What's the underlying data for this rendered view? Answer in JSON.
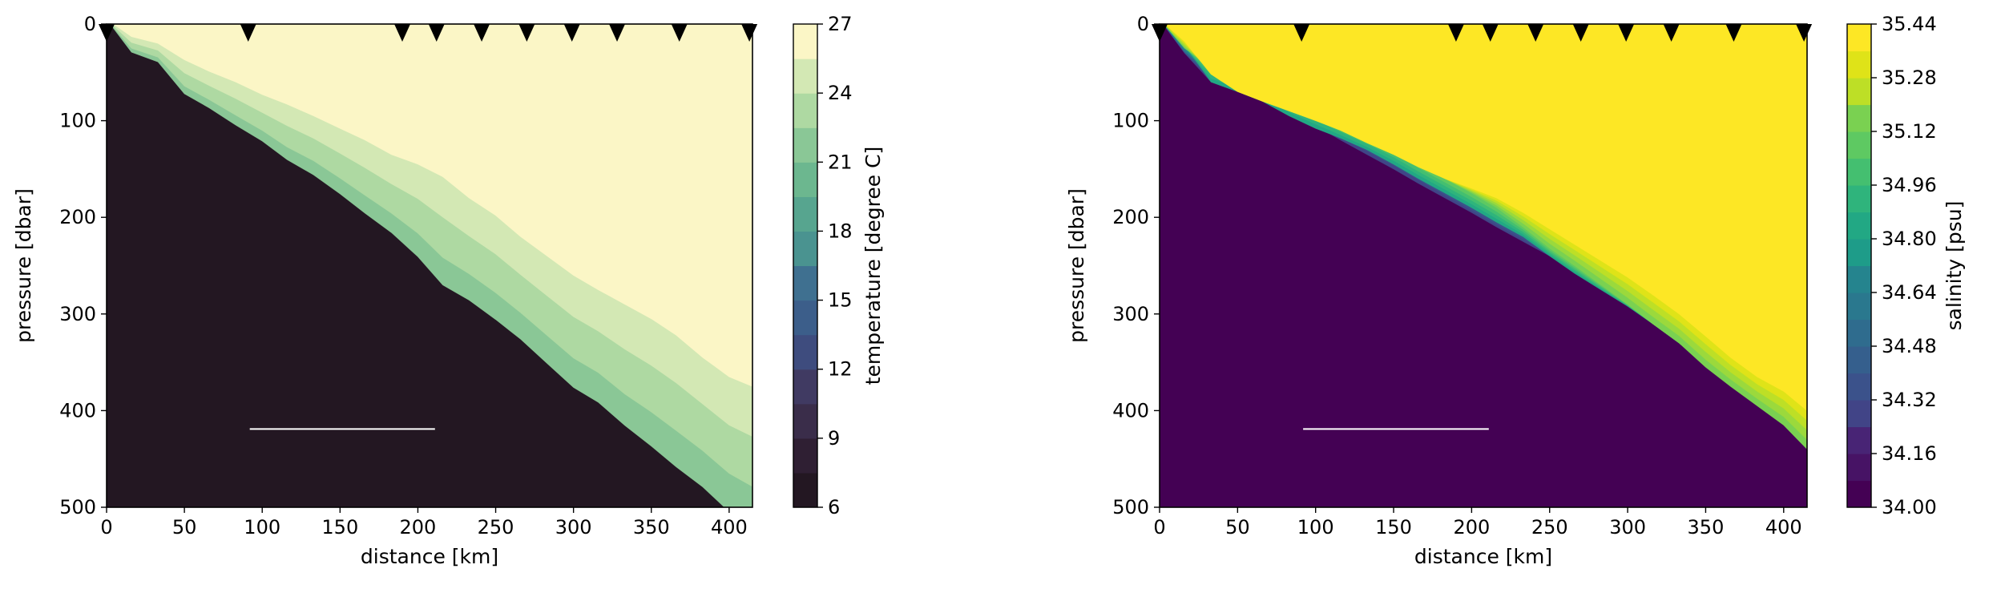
{
  "chart_data": [
    {
      "type": "contourf",
      "variable": "temperature",
      "xlabel": "distance [km]",
      "ylabel": "pressure [dbar]",
      "xlim": [
        0,
        415
      ],
      "ylim": [
        500,
        0
      ],
      "xticks": [
        0,
        50,
        100,
        150,
        200,
        250,
        300,
        350,
        400
      ],
      "yticks": [
        0,
        100,
        200,
        300,
        400,
        500
      ],
      "station_markers_km": [
        0,
        91,
        190,
        212,
        241,
        270,
        299,
        328,
        368,
        413
      ],
      "colorbar": {
        "label": "temperature [degree C]",
        "levels": [
          6,
          7.5,
          9,
          10.5,
          12,
          13.5,
          15,
          16.5,
          18,
          19.5,
          21,
          22.5,
          24,
          25.5,
          27
        ],
        "ticks": [
          6,
          9,
          12,
          15,
          18,
          21,
          24,
          27
        ],
        "colors": [
          "#231722",
          "#2f1f33",
          "#3a2d4a",
          "#403a62",
          "#3e4c7e",
          "#3c5e8a",
          "#3f7090",
          "#428290",
          "#4a9390",
          "#57a58f",
          "#6cb78f",
          "#8ac796",
          "#aed9a2",
          "#d3e8b4",
          "#fbf6c6"
        ]
      },
      "contour_breaks": [
        [
          -5,
          13,
          20,
          37,
          49,
          60,
          73,
          83,
          95,
          108,
          120,
          135,
          145,
          158,
          180,
          198,
          220,
          240,
          260,
          275,
          290,
          305,
          322,
          345,
          365,
          375,
          400
        ],
        [
          -5,
          30,
          40,
          75,
          90,
          108,
          125,
          145,
          160,
          180,
          200,
          220,
          245,
          275,
          290,
          310,
          330,
          355,
          380,
          395,
          420,
          440,
          460,
          480,
          505,
          520,
          540
        ],
        [
          -5,
          18,
          28,
          35,
          45,
          60,
          70,
          80,
          105,
          120,
          140,
          160,
          185,
          205,
          230,
          250,
          275,
          300,
          325,
          345,
          355,
          395,
          435,
          465,
          500,
          520,
          540
        ],
        [
          -5,
          20,
          30,
          65,
          80,
          95,
          110,
          122,
          135,
          150,
          175,
          195,
          215,
          235,
          255,
          280,
          305,
          325,
          345,
          365,
          380,
          395,
          425,
          455,
          480,
          505,
          520
        ],
        [
          -5,
          12,
          22,
          50,
          60,
          75,
          85,
          105,
          120,
          135,
          150,
          165,
          185,
          210,
          230,
          250,
          270,
          290,
          315,
          330,
          350,
          365,
          385,
          405,
          450,
          465,
          520
        ],
        [
          -5,
          6,
          15,
          25,
          40,
          55,
          65,
          80,
          100,
          120,
          140,
          150,
          170,
          190,
          210,
          230,
          250,
          270,
          295,
          315,
          335,
          355,
          380,
          420,
          440,
          460,
          520
        ]
      ]
    },
    {
      "type": "contourf",
      "variable": "salinity",
      "xlabel": "distance [km]",
      "ylabel": "pressure [dbar]",
      "xlim": [
        0,
        415
      ],
      "ylim": [
        500,
        0
      ],
      "xticks": [
        0,
        50,
        100,
        150,
        200,
        250,
        300,
        350,
        400
      ],
      "yticks": [
        0,
        100,
        200,
        300,
        400,
        500
      ],
      "station_markers_km": [
        0,
        91,
        190,
        212,
        241,
        270,
        299,
        328,
        368,
        413
      ],
      "colorbar": {
        "label": "salinity [psu]",
        "levels": [
          34.0,
          34.08,
          34.16,
          34.24,
          34.32,
          34.4,
          34.48,
          34.56,
          34.64,
          34.72,
          34.8,
          34.88,
          34.96,
          35.04,
          35.12,
          35.2,
          35.28,
          35.36,
          35.44
        ],
        "ticks": [
          "34.00",
          "34.16",
          "34.32",
          "34.48",
          "34.64",
          "34.80",
          "34.96",
          "35.12",
          "35.28",
          "35.44"
        ],
        "colors": [
          "#440154",
          "#471365",
          "#482475",
          "#463480",
          "#414487",
          "#3b528b",
          "#355f8d",
          "#2f6c8e",
          "#2a788e",
          "#25848e",
          "#21918c",
          "#1e9c89",
          "#22a884",
          "#2fb47c",
          "#44bf70",
          "#5ec962",
          "#7ad151",
          "#9bd93c",
          "#bddf26",
          "#dfe318",
          "#fde725"
        ]
      },
      "contour_breaks": [
        [
          -5,
          18,
          52,
          70,
          80,
          90,
          100,
          110,
          123,
          135,
          148,
          160,
          170,
          180,
          195,
          212,
          228,
          245,
          262,
          280,
          300,
          323,
          345,
          365,
          380,
          400,
          420
        ],
        [
          -5,
          25,
          45,
          55,
          65,
          80,
          90,
          105,
          118,
          130,
          145,
          160,
          175,
          190,
          210,
          232,
          250,
          270,
          290,
          310,
          330,
          355,
          375,
          395,
          415,
          440,
          460
        ],
        [
          -5,
          22,
          60,
          70,
          80,
          95,
          108,
          118,
          130,
          145,
          160,
          175,
          190,
          205,
          220,
          240,
          258,
          275,
          292,
          310,
          330,
          350,
          372,
          392,
          410,
          430,
          450
        ],
        [
          -5,
          28,
          50,
          60,
          70,
          80,
          95,
          110,
          120,
          135,
          150,
          168,
          185,
          200,
          215,
          230,
          248,
          265,
          282,
          300,
          322,
          343,
          365,
          385,
          405,
          425,
          445
        ],
        [
          -5,
          30,
          60,
          68,
          80,
          92,
          105,
          120,
          135,
          150,
          165,
          180,
          195,
          210,
          225,
          240,
          255,
          270,
          290,
          308,
          326,
          345,
          362,
          378,
          395,
          410,
          425
        ],
        [
          -5,
          30,
          55,
          65,
          75,
          85,
          95,
          105,
          115,
          125,
          135,
          145,
          160,
          175,
          190,
          205,
          220,
          235,
          250,
          265,
          282,
          300,
          318,
          335,
          355,
          370,
          385
        ]
      ]
    }
  ]
}
